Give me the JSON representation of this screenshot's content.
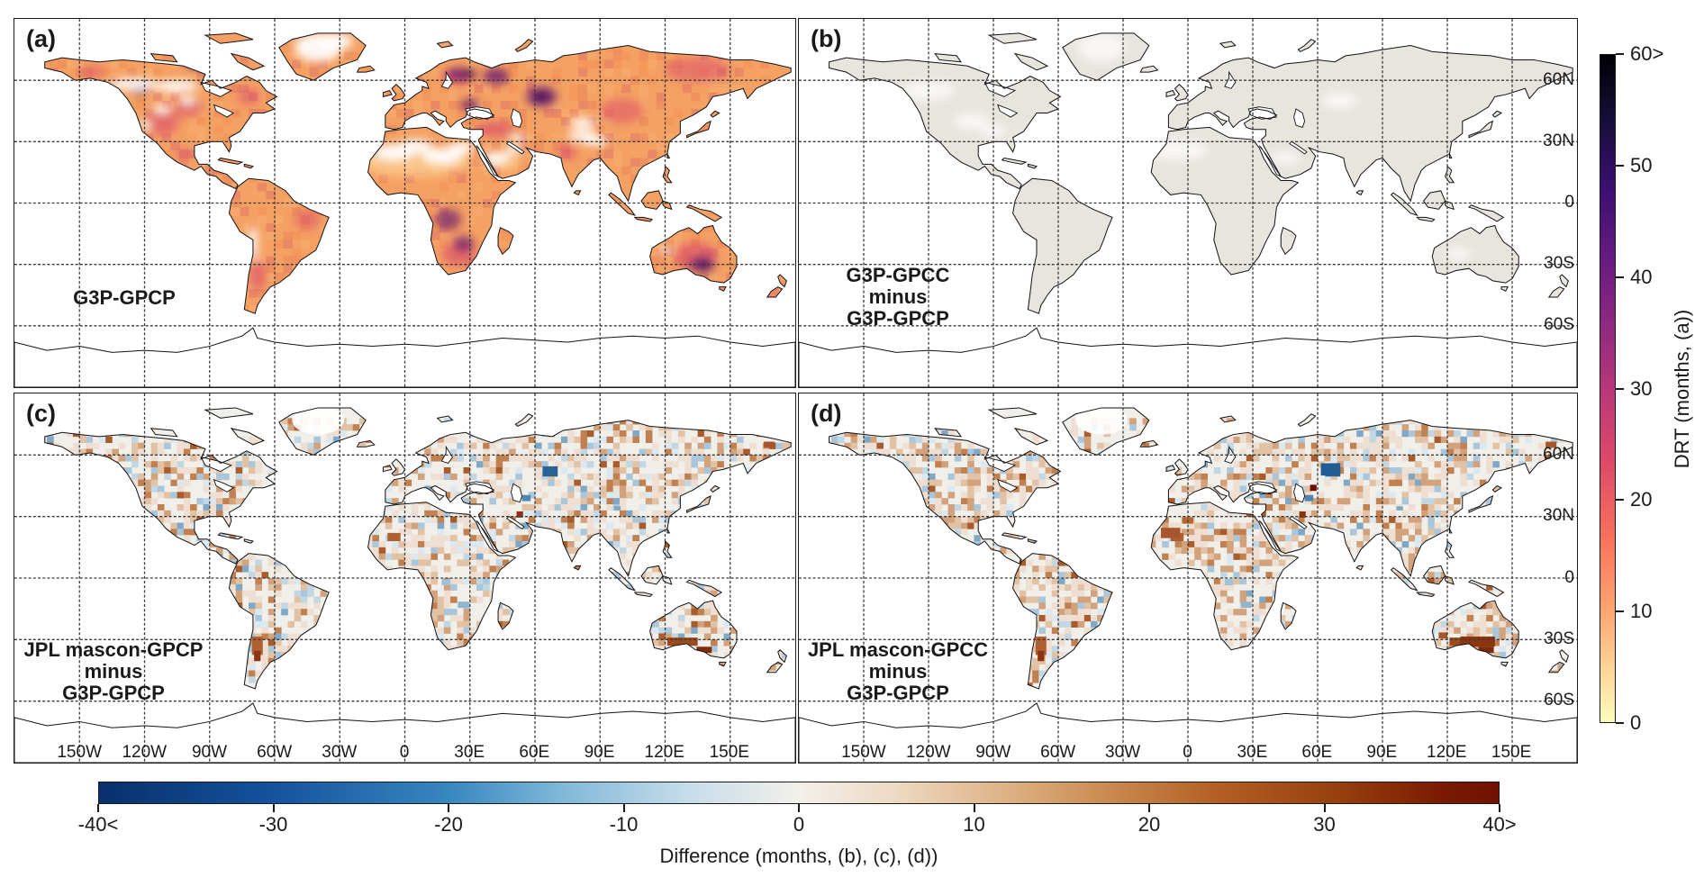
{
  "figure": {
    "panels": [
      {
        "id": "a",
        "tag": "(a)",
        "caption_lines": [
          "G3P-GPCP"
        ]
      },
      {
        "id": "b",
        "tag": "(b)",
        "caption_lines": [
          "G3P-GPCC",
          "minus",
          "G3P-GPCP"
        ]
      },
      {
        "id": "c",
        "tag": "(c)",
        "caption_lines": [
          "JPL mascon-GPCP",
          "minus",
          "G3P-GPCP"
        ]
      },
      {
        "id": "d",
        "tag": "(d)",
        "caption_lines": [
          "JPL mascon-GPCC",
          "minus",
          "G3P-GPCP"
        ]
      }
    ],
    "axis": {
      "lon_labels": [
        "150W",
        "120W",
        "90W",
        "60W",
        "30W",
        "0",
        "30E",
        "60E",
        "90E",
        "120E",
        "150E"
      ],
      "lon_values": [
        -150,
        -120,
        -90,
        -60,
        -30,
        0,
        30,
        60,
        90,
        120,
        150
      ],
      "lat_labels": [
        "60N",
        "30N",
        "0",
        "30S",
        "60S"
      ],
      "lat_values": [
        60,
        30,
        0,
        -30,
        -60
      ]
    },
    "colorbar_right": {
      "title": "DRT (months, (a))",
      "tick_labels": [
        "60>",
        "50",
        "40",
        "30",
        "20",
        "10",
        "0"
      ],
      "tick_values": [
        60,
        50,
        40,
        30,
        20,
        10,
        0
      ],
      "gradient": [
        [
          "#000004",
          0
        ],
        [
          "#140e36",
          9
        ],
        [
          "#3b0f70",
          20
        ],
        [
          "#641a80",
          30
        ],
        [
          "#8c2981",
          40
        ],
        [
          "#b73779",
          50
        ],
        [
          "#de4968",
          61
        ],
        [
          "#f7705c",
          72
        ],
        [
          "#fe9f6d",
          82
        ],
        [
          "#fecf92",
          91
        ],
        [
          "#fcfdbf",
          100
        ]
      ]
    },
    "colorbar_bottom": {
      "title": "Difference (months, (b), (c), (d))",
      "tick_labels": [
        "-40<",
        "-30",
        "-20",
        "-10",
        "0",
        "10",
        "20",
        "30",
        "40>"
      ],
      "tick_values": [
        -40,
        -30,
        -20,
        -10,
        0,
        10,
        20,
        30,
        40
      ],
      "gradient": [
        [
          "#08306b",
          0
        ],
        [
          "#14519c",
          12
        ],
        [
          "#3787c0",
          25
        ],
        [
          "#7fb8d8",
          33
        ],
        [
          "#c6dcea",
          42
        ],
        [
          "#f3f0ea",
          50
        ],
        [
          "#edd9c2",
          57
        ],
        [
          "#ddb183",
          65
        ],
        [
          "#c98b50",
          72
        ],
        [
          "#b35e23",
          80
        ],
        [
          "#98430f",
          88
        ],
        [
          "#7a1a02",
          96
        ],
        [
          "#6f1200",
          100
        ]
      ]
    },
    "colors": {
      "drt_base": "#F5A163",
      "drt_light": "#FBC98B",
      "drt_red": "#D9486B",
      "drt_purple": "#6C1D71",
      "drt_dark": "#30104A",
      "gray_land": "#E8E4DE",
      "diff_land": "#F1EFEA",
      "coast": "#111111",
      "grid": "#3a3a3a",
      "text": "#1a1a1a"
    }
  },
  "chart_data": [
    {
      "type": "heatmap",
      "title": "(a) G3P-GPCP",
      "value_axis": "DRT (months, (a))",
      "range": [
        0,
        60
      ],
      "colormap": "magma-reversed: 0 = pale yellow, 20 = salmon red, 40 = purple, >=60 = black; white = no data",
      "summary": "Global land map of drought recovery time, mostly 5-25 months (orange tones); high values >40 months (dark purple/black) over W Canada, Scandinavia/NW Russia, Urals-Kazakhstan, Ukraine, Angola/Congo, southern Africa and S Australia; white no-data over Sahara, Arabia, Greenland interior, Himalayas; ocean and Antarctica blank"
    },
    {
      "type": "heatmap",
      "title": "(b) G3P-GPCC minus G3P-GPCP",
      "value_axis": "Difference (months, (b), (c), (d))",
      "range": [
        -40,
        40
      ],
      "summary": "Differences essentially zero everywhere: land uniformly very light gray with scattered white patches"
    },
    {
      "type": "heatmap",
      "title": "(c) JPL mascon-GPCP minus G3P-GPCP",
      "value_axis": "Difference (months, (b), (c), (d))",
      "range": [
        -40,
        40
      ],
      "summary": "Coarse ~3 degree mosaic of small positive (light brown) and negative (light blue) differences; strong positives (dark brown) over S Australia, Argentina, Sahel and Canadian Arctic; strong negatives (dark blue) near Kazakhstan ~70E 50N and east of Caspian"
    },
    {
      "type": "heatmap",
      "title": "(d) JPL mascon-GPCC minus G3P-GPCP",
      "value_axis": "Difference (months, (b), (c), (d))",
      "range": [
        -40,
        40
      ],
      "summary": "Like (c) but browns slightly stronger (NW Africa, Iceland, S Australia); pronounced dark blue anomaly near 70E 50N and dark red spot near 59E 43N"
    }
  ]
}
